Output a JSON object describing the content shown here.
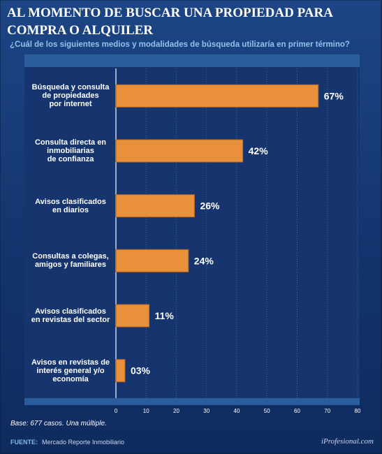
{
  "chart_data": {
    "type": "bar",
    "orientation": "horizontal",
    "title": "AL MOMENTO DE BUSCAR UNA PROPIEDAD PARA COMPRA O ALQUILER",
    "subtitle": "¿Cuál de los siguientes medios y modalidades de búsqueda utilizaría en primer término?",
    "categories": [
      "Búsqueda y consulta\nde propiedades\npor internet",
      "Consulta directa en\ninmobiliarias\nde confianza",
      "Avisos clasificados\nen diarios",
      "Consultas a colegas,\namigos y familiares",
      "Avisos clasificados\nen revistas del sector",
      "Avisos en revistas de\ninterés general y/o\neconomía"
    ],
    "values": [
      67,
      42,
      26,
      24,
      11,
      3
    ],
    "value_labels": [
      "67%",
      "42%",
      "26%",
      "24%",
      "11%",
      "03%"
    ],
    "color": "#e8913a",
    "xlim": [
      0,
      80
    ],
    "xticks": [
      0,
      10,
      20,
      30,
      40,
      50,
      60,
      70,
      80
    ],
    "grid": true,
    "note": "Base: 677 casos. Una múltiple.",
    "source_label": "FUENTE:",
    "source": "Mercado Reporte Inmobiliario",
    "brand": "iProfesional.com"
  }
}
